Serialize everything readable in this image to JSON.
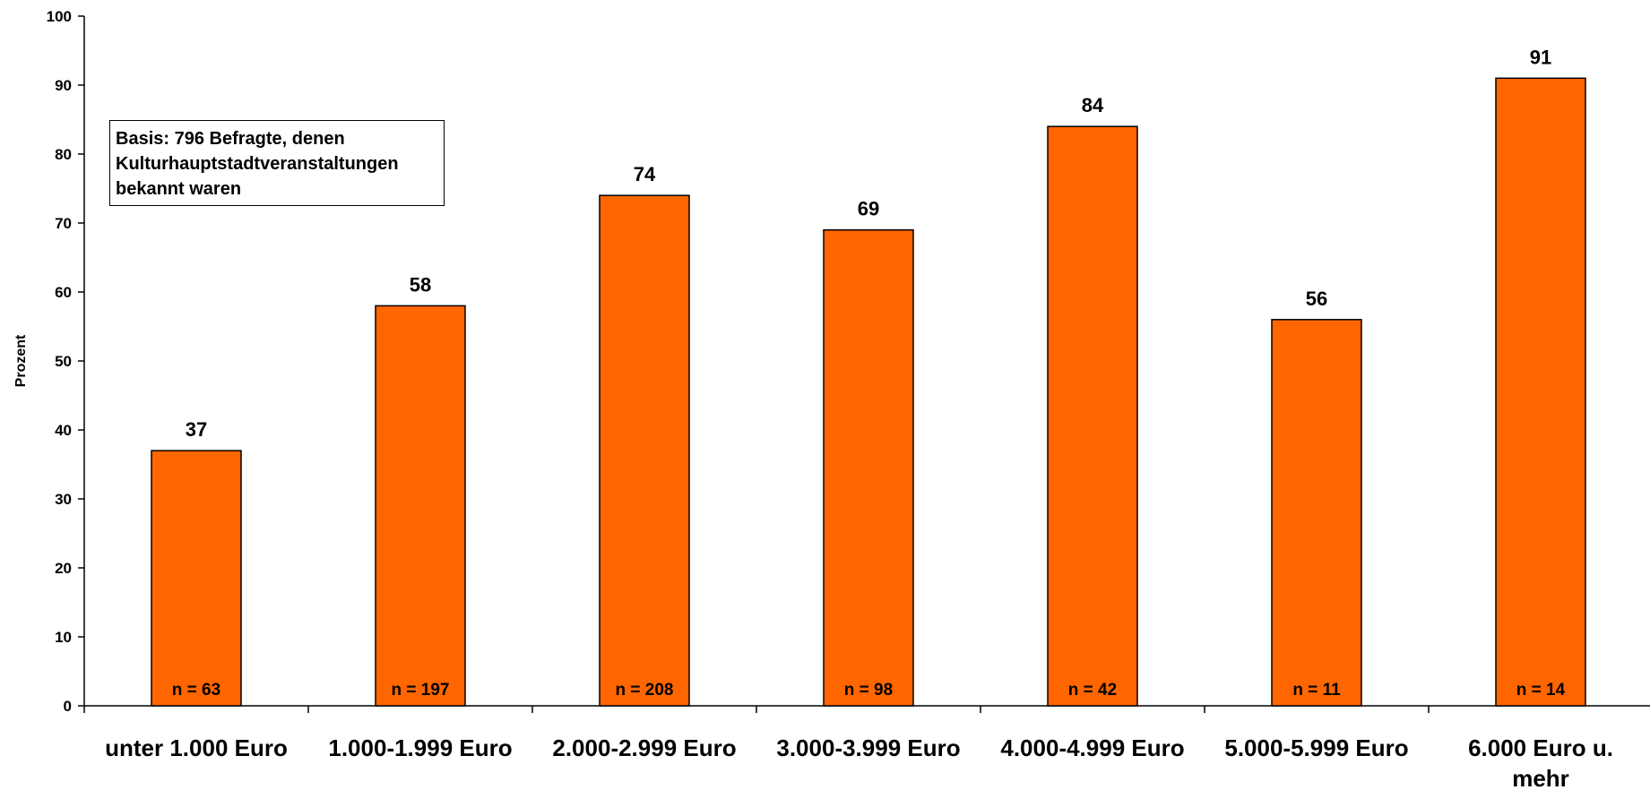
{
  "chart_data": {
    "type": "bar",
    "categories": [
      [
        "unter 1.000 Euro"
      ],
      [
        "1.000-1.999 Euro"
      ],
      [
        "2.000-2.999 Euro"
      ],
      [
        "3.000-3.999 Euro"
      ],
      [
        "4.000-4.999 Euro"
      ],
      [
        "5.000-5.999 Euro"
      ],
      [
        "6.000 Euro u.",
        "mehr"
      ]
    ],
    "values": [
      37,
      58,
      74,
      69,
      84,
      56,
      91
    ],
    "value_labels": [
      "37",
      "58",
      "74",
      "69",
      "84",
      "56",
      "91"
    ],
    "sample_sizes": [
      "n = 63",
      "n = 197",
      "n = 208",
      "n = 98",
      "n = 42",
      "n = 11",
      "n = 14"
    ],
    "ylabel": "Prozent",
    "ylim": [
      0,
      100
    ],
    "yticks": [
      "0",
      "10",
      "20",
      "30",
      "40",
      "50",
      "60",
      "70",
      "80",
      "90",
      "100"
    ],
    "bar_color": "#FF6600",
    "grid": false,
    "note": {
      "lines": [
        "Basis: 796 Befragte, denen",
        "Kulturhauptstadtveranstaltungen",
        "bekannt waren"
      ]
    }
  }
}
